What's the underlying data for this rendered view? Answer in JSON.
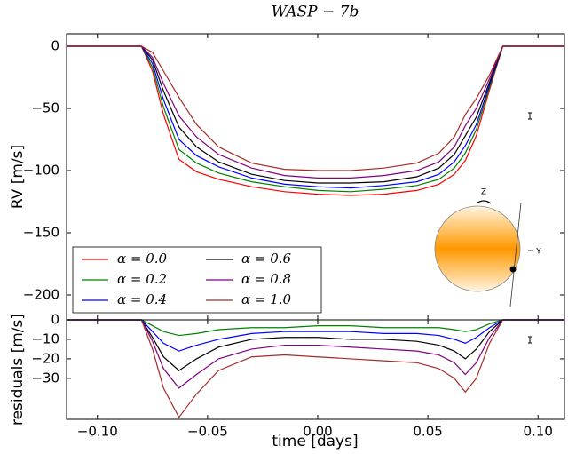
{
  "chart_data": [
    {
      "type": "line",
      "title": "WASP − 7b",
      "ylabel": "RV [m/s]",
      "x": [
        -0.114,
        -0.08,
        -0.075,
        -0.07,
        -0.063,
        -0.055,
        -0.045,
        -0.03,
        -0.015,
        0,
        0.015,
        0.03,
        0.045,
        0.055,
        0.062,
        0.067,
        0.072,
        0.078,
        0.084,
        0.112
      ],
      "xlim": [
        -0.114,
        0.112
      ],
      "ylim": [
        -220,
        10
      ],
      "yticks": [
        {
          "value": 0,
          "label": "0"
        },
        {
          "value": -50,
          "label": "−50"
        },
        {
          "value": -100,
          "label": "−100"
        },
        {
          "value": -150,
          "label": "−150"
        },
        {
          "value": -200,
          "label": "−200"
        }
      ],
      "series": [
        {
          "name": "α = 0.0",
          "color": "#ff0000",
          "values": [
            0,
            0,
            -20,
            -55,
            -91,
            -101,
            -107,
            -113,
            -117,
            -119,
            -120,
            -119,
            -116,
            -111,
            -103,
            -92,
            -72,
            -35,
            0,
            0
          ]
        },
        {
          "name": "α = 0.2",
          "color": "#008000",
          "values": [
            0,
            0,
            -17,
            -49,
            -83,
            -94,
            -102,
            -109,
            -113,
            -116,
            -117,
            -115,
            -112,
            -107,
            -98,
            -86,
            -67,
            -33,
            0,
            0
          ]
        },
        {
          "name": "α = 0.4",
          "color": "#0000ff",
          "values": [
            0,
            0,
            -14,
            -43,
            -75,
            -88,
            -97,
            -106,
            -111,
            -113,
            -114,
            -112,
            -109,
            -103,
            -93,
            -80,
            -63,
            -31,
            0,
            0
          ]
        },
        {
          "name": "α = 0.6",
          "color": "#000000",
          "values": [
            0,
            0,
            -11,
            -36,
            -65,
            -81,
            -93,
            -103,
            -108,
            -110,
            -110,
            -109,
            -105,
            -98,
            -87,
            -72,
            -57,
            -29,
            0,
            0
          ]
        },
        {
          "name": "α = 0.8",
          "color": "#800080",
          "values": [
            0,
            0,
            -9,
            -30,
            -56,
            -73,
            -87,
            -98,
            -104,
            -106,
            -106,
            -104,
            -100,
            -93,
            -81,
            -64,
            -50,
            -26,
            0,
            0
          ]
        },
        {
          "name": "α = 1.0",
          "color": "#a52a2a",
          "values": [
            0,
            0,
            -5,
            -20,
            -41,
            -63,
            -81,
            -94,
            -99,
            -100,
            -100,
            -98,
            -94,
            -86,
            -73,
            -55,
            -42,
            -23,
            0,
            0
          ]
        }
      ]
    },
    {
      "type": "line",
      "ylabel": "residuals [m/s]",
      "xlabel": "time [days]",
      "x": [
        -0.114,
        -0.08,
        -0.075,
        -0.07,
        -0.063,
        -0.055,
        -0.045,
        -0.03,
        -0.015,
        0,
        0.015,
        0.03,
        0.045,
        0.055,
        0.062,
        0.067,
        0.072,
        0.078,
        0.084,
        0.112
      ],
      "xlim": [
        -0.114,
        0.112
      ],
      "ylim": [
        -51,
        0
      ],
      "xticks": [
        {
          "value": -0.1,
          "label": "−0.10"
        },
        {
          "value": -0.05,
          "label": "−0.05"
        },
        {
          "value": 0,
          "label": "0.00"
        },
        {
          "value": 0.05,
          "label": "0.05"
        },
        {
          "value": 0.1,
          "label": "0.10"
        }
      ],
      "yticks": [
        {
          "value": 0,
          "label": "0"
        },
        {
          "value": -10,
          "label": "−10"
        },
        {
          "value": -20,
          "label": "−20"
        },
        {
          "value": -30,
          "label": "−30"
        }
      ],
      "series": [
        {
          "color": "#008000",
          "values": [
            0,
            0,
            -3,
            -6,
            -8,
            -7,
            -5,
            -4,
            -4,
            -3,
            -3,
            -4,
            -4,
            -4,
            -5,
            -6,
            -5,
            -2,
            0,
            0
          ]
        },
        {
          "color": "#0000ff",
          "values": [
            0,
            0,
            -6,
            -12,
            -16,
            -13,
            -10,
            -7,
            -6,
            -6,
            -6,
            -7,
            -7,
            -8,
            -10,
            -12,
            -9,
            -4,
            0,
            0
          ]
        },
        {
          "color": "#000000",
          "values": [
            0,
            0,
            -9,
            -19,
            -26,
            -20,
            -14,
            -10,
            -9,
            -9,
            -10,
            -10,
            -11,
            -13,
            -16,
            -20,
            -15,
            -6,
            0,
            0
          ]
        },
        {
          "color": "#800080",
          "values": [
            0,
            0,
            -11,
            -25,
            -35,
            -28,
            -20,
            -15,
            -13,
            -13,
            -14,
            -15,
            -16,
            -18,
            -22,
            -28,
            -22,
            -9,
            0,
            0
          ]
        },
        {
          "color": "#a52a2a",
          "values": [
            0,
            0,
            -15,
            -35,
            -50,
            -38,
            -26,
            -19,
            -18,
            -19,
            -20,
            -21,
            -22,
            -25,
            -30,
            -37,
            -30,
            -12,
            0,
            0
          ]
        }
      ]
    }
  ]
}
